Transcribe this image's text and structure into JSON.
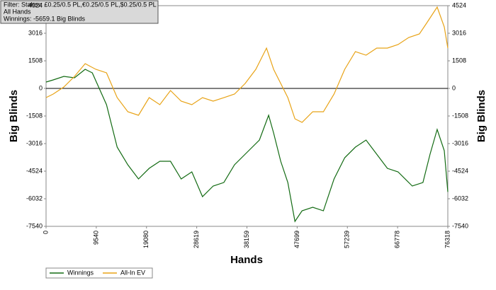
{
  "chart_data": {
    "type": "line",
    "filter_lines": [
      "Filter: Stakes: £0.25/0.5 PL,€0.25/0.5 PL,$0.25/0.5 PL",
      "All Hands",
      "Winnings: -5659.1 Big Blinds"
    ],
    "x_label": "Hands",
    "y_label": "Big Blinds",
    "y2_label": "Big Blinds",
    "xlim": [
      0,
      76318
    ],
    "xticks": [
      0,
      9540,
      19080,
      28619,
      38159,
      47699,
      57239,
      66778,
      76318
    ],
    "ylim": [
      -7540,
      4524
    ],
    "yticks": [
      -7540,
      -6032,
      -4524,
      -3016,
      -1508,
      0,
      1508,
      3016,
      4524
    ],
    "y2lim": [
      -7540,
      4524
    ],
    "y2ticks": [
      -7540,
      -6032,
      -4524,
      -3016,
      -1508,
      0,
      1508,
      3016,
      4524
    ],
    "series": [
      {
        "name": "Winnings",
        "color": "#136b13",
        "x": [
          0,
          1351,
          3377,
          5403,
          7429,
          8780,
          11482,
          13508,
          15534,
          17560,
          19587,
          21613,
          23639,
          25665,
          27691,
          29717,
          31744,
          33770,
          35796,
          38498,
          40524,
          42280,
          43226,
          44576,
          45927,
          47278,
          48629,
          50655,
          52681,
          54707,
          56734,
          58760,
          60786,
          62812,
          64838,
          66865,
          69566,
          71592,
          72943,
          74294,
          75645,
          76318
        ],
        "values": [
          348,
          464,
          657,
          580,
          1044,
          851,
          -889,
          -3209,
          -4176,
          -4950,
          -4370,
          -3983,
          -3983,
          -4950,
          -4563,
          -5917,
          -5336,
          -5143,
          -4176,
          -3403,
          -2823,
          -1469,
          -2436,
          -3983,
          -5143,
          -7270,
          -6690,
          -6497,
          -6690,
          -4950,
          -3790,
          -3210,
          -2823,
          -3596,
          -4370,
          -4563,
          -5336,
          -5143,
          -3596,
          -2243,
          -3403,
          -5659
        ]
      },
      {
        "name": "All-In EV",
        "color": "#e8a317",
        "x": [
          0,
          1351,
          3377,
          5403,
          7429,
          9456,
          11482,
          13508,
          15534,
          17560,
          19587,
          21613,
          23639,
          25665,
          27691,
          29717,
          31744,
          33770,
          35796,
          37822,
          39848,
          41874,
          43226,
          44576,
          45927,
          47278,
          48629,
          50655,
          52681,
          54707,
          56734,
          58760,
          60786,
          62812,
          64838,
          66865,
          68891,
          70917,
          72268,
          74294,
          75645,
          76318
        ],
        "values": [
          -503,
          -309,
          77,
          657,
          1353,
          1044,
          851,
          -503,
          -1276,
          -1469,
          -503,
          -889,
          -116,
          -696,
          -889,
          -503,
          -696,
          -503,
          -309,
          271,
          1044,
          2204,
          1044,
          271,
          -503,
          -1663,
          -1856,
          -1276,
          -1276,
          -309,
          1044,
          2011,
          1817,
          2204,
          2204,
          2398,
          2784,
          2978,
          3558,
          4447,
          3364,
          2204
        ]
      }
    ]
  }
}
